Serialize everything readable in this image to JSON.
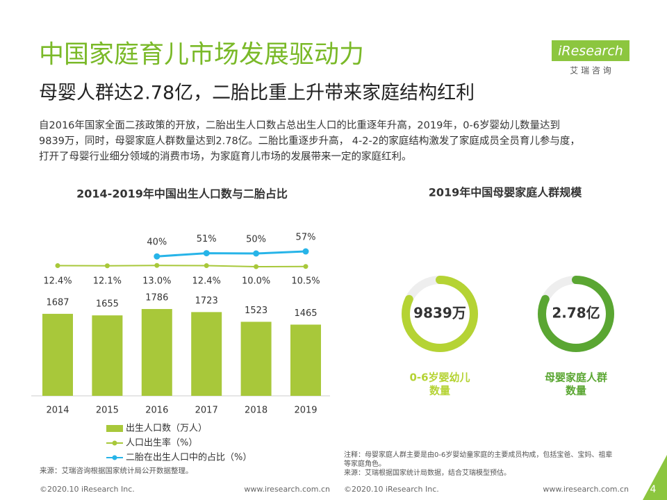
{
  "header": {
    "title": "中国家庭育儿市场发展驱动力",
    "subtitle": "母婴人群达2.78亿，二胎比重上升带来家庭结构红利",
    "logo": "iResearch",
    "logo_sub": "艾 瑞 咨 询"
  },
  "body": [
    "自2016年国家全面二孩政策的开放，二胎出生人口数占总出生人口的比重逐年升高，2019年，0-6岁婴幼儿数量达到",
    "9839万，同时，母婴家庭人群数量达到2.78亿。二胎比重逐步升高， 4-2-2的家庭结构激发了家庭成员全员育儿参与度，",
    "打开了母婴行业细分领域的消费市场，为家庭育儿市场的发展带来一定的家庭红利。"
  ],
  "chart_data": [
    {
      "type": "bar",
      "title": "2014-2019年中国出生人口数与二胎占比",
      "categories": [
        "2014",
        "2015",
        "2016",
        "2017",
        "2018",
        "2019"
      ],
      "series": [
        {
          "name": "出生人口数（万人）",
          "type": "bar",
          "color": "#a8c83a",
          "values": [
            1687,
            1655,
            1786,
            1723,
            1523,
            1465
          ]
        },
        {
          "name": "人口出生率（%）",
          "type": "line",
          "color": "#a8c83a",
          "values": [
            12.4,
            12.1,
            13.0,
            12.4,
            10.0,
            10.5
          ],
          "value_labels": [
            "12.4%",
            "12.1%",
            "13.0%",
            "12.4%",
            "10.0%",
            "10.5%"
          ]
        },
        {
          "name": "二胎在出生人口中的占比（%）",
          "type": "line",
          "color": "#27b4e8",
          "values": [
            null,
            null,
            40,
            51,
            50,
            57
          ],
          "value_labels": [
            null,
            null,
            "40%",
            "51%",
            "50%",
            "57%"
          ]
        }
      ],
      "source": "来源：艾瑞咨询根据国家统计局公开数据整理。"
    },
    {
      "type": "donut",
      "title": "2019年中国母婴家庭人群规模",
      "items": [
        {
          "value": "9839万",
          "label": [
            "0-6岁婴幼儿",
            "数量"
          ],
          "color": "#b5d334"
        },
        {
          "value": "2.78亿",
          "label": [
            "母婴家庭人群",
            "数量"
          ],
          "color": "#5aa632"
        }
      ],
      "notes": [
        "注释：母婴家庭人群主要是由0-6岁婴幼童家庭的主要成员构成，包括宝爸、宝妈、祖辈",
        "等家庭角色。",
        "来源：艾瑞根据国家统计局数据，结合艾瑞模型预估。"
      ]
    }
  ],
  "footer": {
    "left_copyright": "©2020.10 iResearch Inc.",
    "left_url": "www.iresearch.com.cn",
    "right_copyright": "©2020.10 iResearch Inc.",
    "right_url": "www.iresearch.com.cn",
    "page": "4"
  }
}
